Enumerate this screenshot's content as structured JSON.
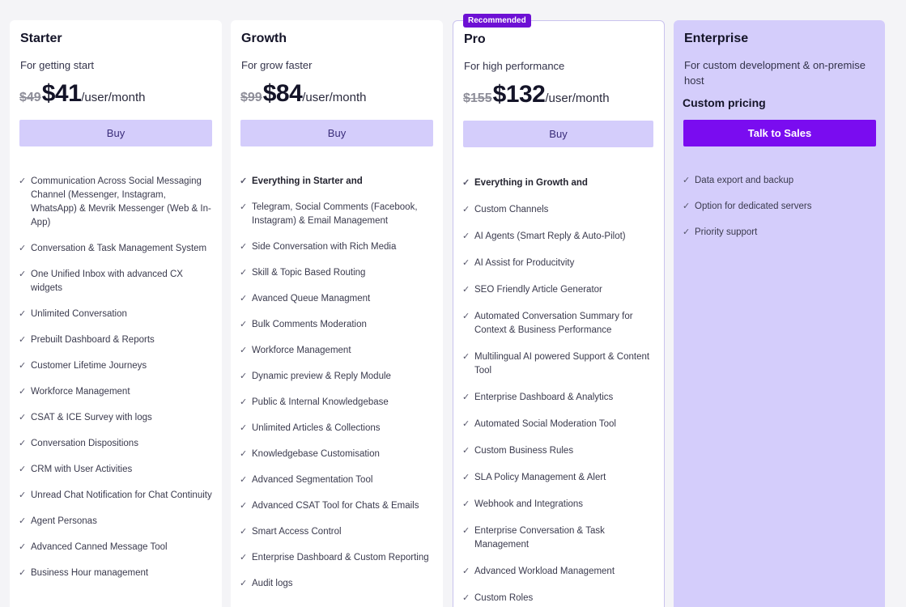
{
  "plans": [
    {
      "name": "Starter",
      "subtitle": "For getting start",
      "old_price": "$49",
      "price": "$41",
      "unit": "/user/month",
      "button": "Buy",
      "features": [
        {
          "text": "Communication Across Social Messaging Channel (Messenger, Instagram, WhatsApp) & Mevrik Messenger (Web & In-App)"
        },
        {
          "text": "Conversation & Task Management System"
        },
        {
          "text": "One Unified Inbox with advanced CX widgets"
        },
        {
          "text": "Unlimited Conversation"
        },
        {
          "text": "Prebuilt Dashboard & Reports"
        },
        {
          "text": "Customer Lifetime Journeys"
        },
        {
          "text": "Workforce Management"
        },
        {
          "text": "CSAT & ICE Survey with logs"
        },
        {
          "text": "Conversation Dispositions"
        },
        {
          "text": "CRM with User Activities"
        },
        {
          "text": "Unread Chat Notification for Chat Continuity"
        },
        {
          "text": "Agent Personas"
        },
        {
          "text": "Advanced Canned Message Tool"
        },
        {
          "text": "Business Hour management"
        }
      ]
    },
    {
      "name": "Growth",
      "subtitle": "For grow faster",
      "old_price": "$99",
      "price": "$84",
      "unit": "/user/month",
      "button": "Buy",
      "features": [
        {
          "text": "Everything in Starter and",
          "bold": true
        },
        {
          "text": "Telegram, Social Comments (Facebook, Instagram) & Email Management"
        },
        {
          "text": "Side Conversation with Rich Media"
        },
        {
          "text": "Skill & Topic Based Routing"
        },
        {
          "text": "Avanced Queue Managment"
        },
        {
          "text": "Bulk Comments Moderation"
        },
        {
          "text": "Workforce Management"
        },
        {
          "text": "Dynamic preview & Reply Module"
        },
        {
          "text": "Public & Internal Knowledgebase"
        },
        {
          "text": "Unlimited Articles & Collections"
        },
        {
          "text": "Knowledgebase Customisation"
        },
        {
          "text": "Advanced Segmentation Tool"
        },
        {
          "text": "Advanced CSAT Tool for Chats & Emails"
        },
        {
          "text": "Smart Access Control"
        },
        {
          "text": "Enterprise Dashboard & Custom Reporting"
        },
        {
          "text": "Audit logs"
        }
      ]
    },
    {
      "name": "Pro",
      "badge": "Recommended",
      "subtitle": "For high performance",
      "old_price": "$155",
      "price": "$132",
      "unit": "/user/month",
      "button": "Buy",
      "features": [
        {
          "text": "Everything in Growth and",
          "bold": true
        },
        {
          "text": "Custom Channels"
        },
        {
          "text": "AI Agents (Smart Reply & Auto-Pilot)"
        },
        {
          "text": "AI Assist for Producitvity"
        },
        {
          "text": "SEO Friendly Article Generator"
        },
        {
          "text": "Automated Conversation Summary for Context & Business Performance"
        },
        {
          "text": "Multilingual AI powered Support & Content Tool"
        },
        {
          "text": "Enterprise Dashboard & Analytics"
        },
        {
          "text": "Automated Social Moderation Tool"
        },
        {
          "text": "Custom Business Rules"
        },
        {
          "text": "SLA Policy Management & Alert"
        },
        {
          "text": "Webhook and Integrations"
        },
        {
          "text": "Enterprise Conversation & Task Management"
        },
        {
          "text": "Advanced Workload Management"
        },
        {
          "text": "Custom Roles"
        }
      ]
    },
    {
      "name": "Enterprise",
      "subtitle": "For custom development & on-premise host",
      "custom_pricing": "Custom pricing",
      "button": "Talk to Sales",
      "features": [
        {
          "text": "Data export and backup"
        },
        {
          "text": "Option for dedicated servers"
        },
        {
          "text": "Priority support"
        }
      ]
    }
  ],
  "colors": {
    "accent": "#7a0cf0",
    "button_light": "#d4cdfb",
    "badge": "#6d10d4"
  },
  "icons": {
    "feature": "check-icon"
  }
}
